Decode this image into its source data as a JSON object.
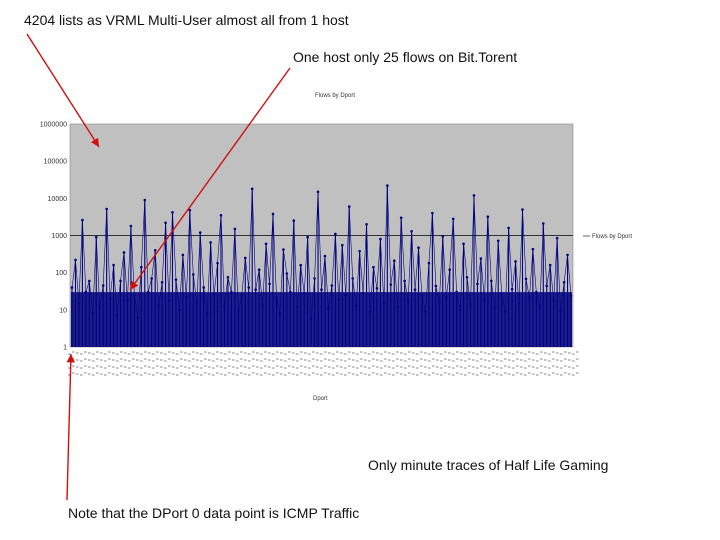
{
  "annotations": {
    "vrml": "4204 lists as VRML Multi-User almost all from 1 host",
    "bittorrent": "One host only 25 flows on Bit.Torent",
    "halflife": "Only minute traces of Half Life Gaming",
    "icmp": "Note that the DPort 0 data point is ICMP Traffic"
  },
  "colors": {
    "plot_background": "#c0c0c0",
    "series": "#000080",
    "arrow": "#d01010"
  },
  "chart_data": {
    "type": "line",
    "title": "Flows by Dport",
    "xlabel": "Dport",
    "ylabel": "",
    "legend": [
      "Flows by Dport"
    ],
    "legend_position": "right",
    "yscale": "log",
    "ylim": [
      1,
      1000000
    ],
    "yticks": [
      "1000000",
      "100000",
      "10000",
      "1000",
      "100",
      "10",
      "1"
    ],
    "grid": false,
    "reference_line": 1000,
    "series": [
      {
        "name": "Flows by Dport",
        "y": [
          40,
          220,
          15,
          2600,
          30,
          60,
          8,
          900,
          12,
          45,
          5200,
          20,
          160,
          7,
          60,
          350,
          18,
          1800,
          25,
          6,
          140,
          9000,
          30,
          70,
          400,
          12,
          55,
          2200,
          18,
          4204,
          65,
          10,
          300,
          22,
          4800,
          90,
          15,
          1200,
          40,
          8,
          650,
          26,
          180,
          3500,
          12,
          75,
          30,
          1500,
          9,
          25,
          250,
          40,
          18000,
          35,
          120,
          14,
          600,
          50,
          3800,
          22,
          8,
          420,
          95,
          30,
          2500,
          12,
          160,
          28,
          900,
          6,
          70,
          15000,
          35,
          280,
          11,
          45,
          1100,
          19,
          550,
          25,
          6000,
          70,
          13,
          380,
          28,
          2000,
          9,
          140,
          38,
          800,
          16,
          22000,
          48,
          210,
          12,
          3000,
          60,
          18,
          1300,
          35,
          470,
          25,
          9,
          180,
          4000,
          44,
          16,
          950,
          22,
          120,
          2800,
          30,
          10,
          600,
          75,
          14,
          12000,
          50,
          240,
          19,
          3200,
          60,
          11,
          720,
          28,
          9,
          1600,
          36,
          200,
          15,
          5000,
          68,
          21,
          430,
          30,
          12,
          2100,
          44,
          160,
          18,
          850,
          9,
          55,
          300,
          24
        ]
      }
    ]
  }
}
